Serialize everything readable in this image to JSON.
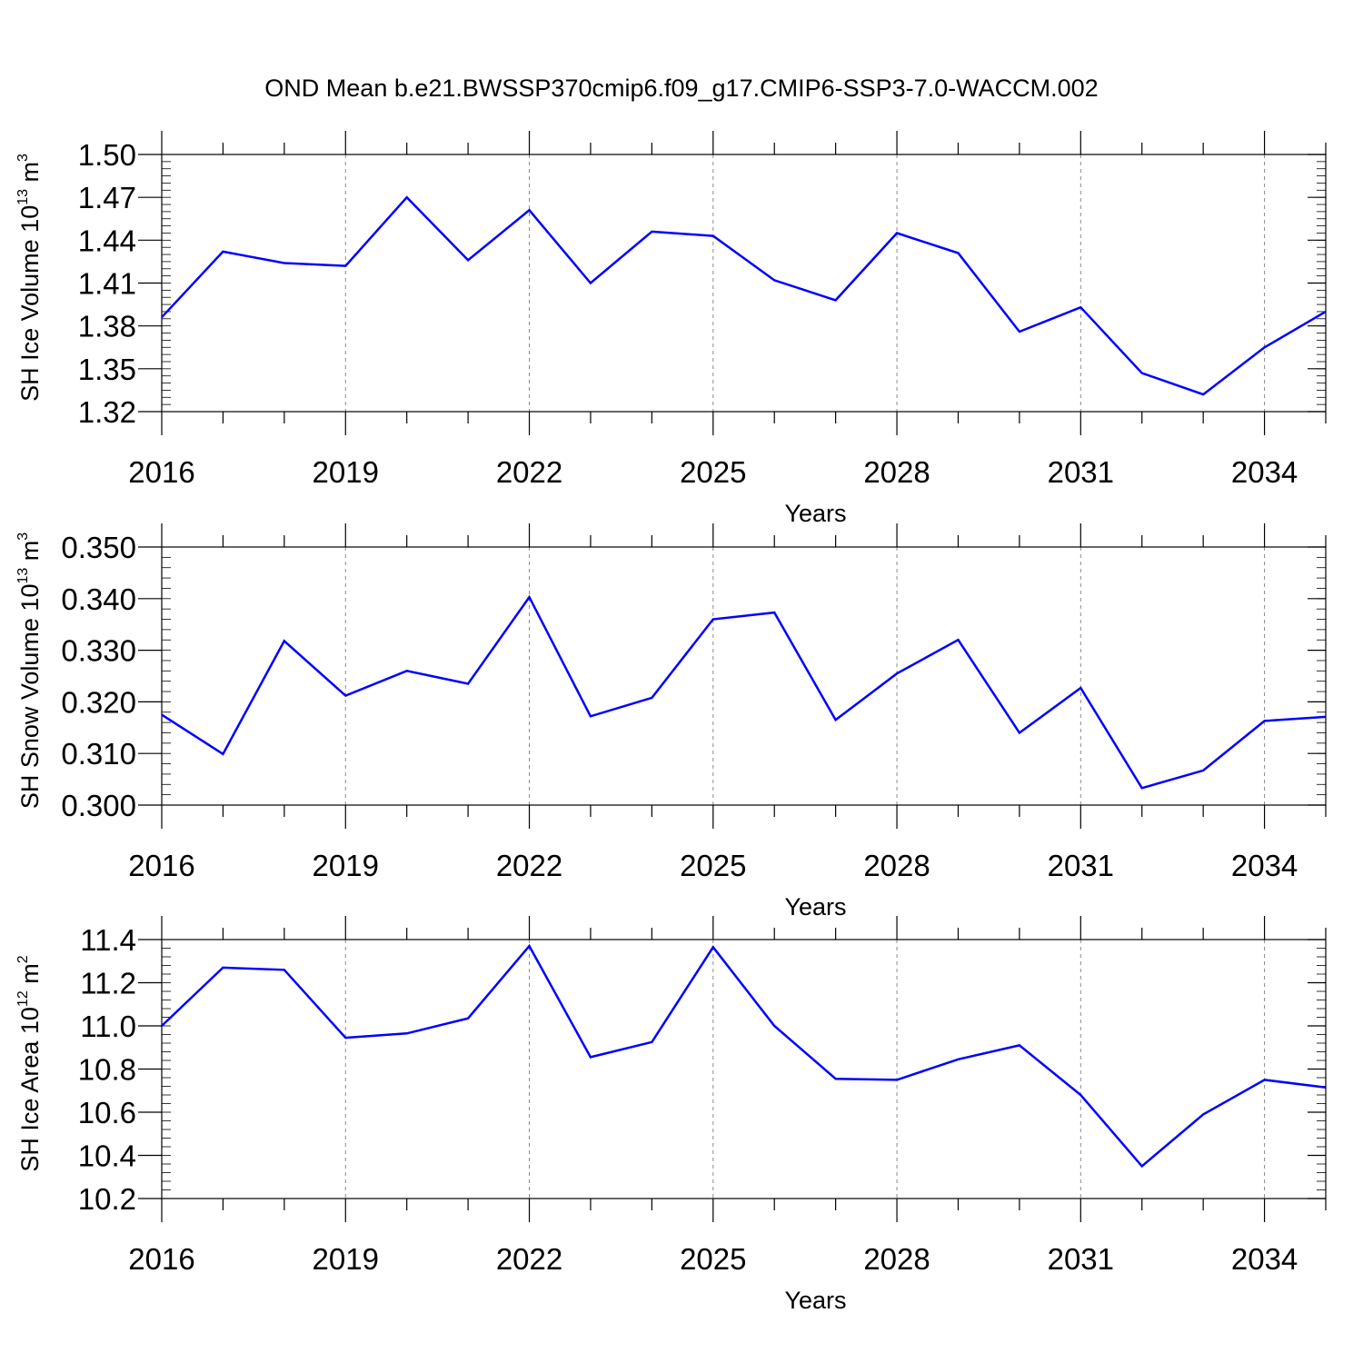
{
  "figure": {
    "title": "OND Mean b.e21.BWSSP370cmip6.f09_g17.CMIP6-SSP3-7.0-WACCM.002",
    "line_color": "#0000ff"
  },
  "chart_data": [
    {
      "type": "line",
      "xlabel": "Years",
      "ylabel": {
        "main": "SH Ice Volume 10",
        "exp": "13",
        "unit": " m",
        "unit_exp": "3"
      },
      "xlim": [
        2016,
        2035
      ],
      "ylim": [
        1.32,
        1.5
      ],
      "x_ticks": [
        2016,
        2019,
        2022,
        2025,
        2028,
        2031,
        2034
      ],
      "x_tick_labels": [
        "2016",
        "2019",
        "2022",
        "2025",
        "2028",
        "2031",
        "2034"
      ],
      "y_ticks": [
        1.32,
        1.35,
        1.38,
        1.41,
        1.44,
        1.47,
        1.5
      ],
      "y_tick_labels": [
        "1.32",
        "1.35",
        "1.38",
        "1.41",
        "1.44",
        "1.47",
        "1.50"
      ],
      "y_minor_step": 0.005,
      "grid": "vertical dashed at major x ticks",
      "x": [
        2016,
        2017,
        2018,
        2019,
        2020,
        2021,
        2022,
        2023,
        2024,
        2025,
        2026,
        2027,
        2028,
        2029,
        2030,
        2031,
        2032,
        2033,
        2034,
        2035
      ],
      "values": [
        1.386,
        1.432,
        1.424,
        1.422,
        1.47,
        1.426,
        1.461,
        1.41,
        1.446,
        1.443,
        1.412,
        1.398,
        1.445,
        1.431,
        1.376,
        1.393,
        1.347,
        1.332,
        1.365,
        1.39
      ]
    },
    {
      "type": "line",
      "xlabel": "Years",
      "ylabel": {
        "main": "SH Snow Volume 10",
        "exp": "13",
        "unit": " m",
        "unit_exp": "3"
      },
      "xlim": [
        2016,
        2035
      ],
      "ylim": [
        0.3,
        0.35
      ],
      "x_ticks": [
        2016,
        2019,
        2022,
        2025,
        2028,
        2031,
        2034
      ],
      "x_tick_labels": [
        "2016",
        "2019",
        "2022",
        "2025",
        "2028",
        "2031",
        "2034"
      ],
      "y_ticks": [
        0.3,
        0.31,
        0.32,
        0.33,
        0.34,
        0.35
      ],
      "y_tick_labels": [
        "0.300",
        "0.310",
        "0.320",
        "0.330",
        "0.340",
        "0.350"
      ],
      "y_minor_step": 0.002,
      "grid": "vertical dashed at major x ticks",
      "x": [
        2016,
        2017,
        2018,
        2019,
        2020,
        2021,
        2022,
        2023,
        2024,
        2025,
        2026,
        2027,
        2028,
        2029,
        2030,
        2031,
        2032,
        2033,
        2034,
        2035
      ],
      "values": [
        0.3175,
        0.3099,
        0.3318,
        0.3212,
        0.326,
        0.3235,
        0.3403,
        0.3172,
        0.3208,
        0.336,
        0.3373,
        0.3165,
        0.3255,
        0.332,
        0.314,
        0.3227,
        0.3033,
        0.3067,
        0.3163,
        0.3171
      ]
    },
    {
      "type": "line",
      "xlabel": "Years",
      "ylabel": {
        "main": "SH Ice Area 10",
        "exp": "12",
        "unit": " m",
        "unit_exp": "2"
      },
      "xlim": [
        2016,
        2035
      ],
      "ylim": [
        10.2,
        11.4
      ],
      "x_ticks": [
        2016,
        2019,
        2022,
        2025,
        2028,
        2031,
        2034
      ],
      "x_tick_labels": [
        "2016",
        "2019",
        "2022",
        "2025",
        "2028",
        "2031",
        "2034"
      ],
      "y_ticks": [
        10.2,
        10.4,
        10.6,
        10.8,
        11.0,
        11.2,
        11.4
      ],
      "y_tick_labels": [
        "10.2",
        "10.4",
        "10.6",
        "10.8",
        "11.0",
        "11.2",
        "11.4"
      ],
      "y_minor_step": 0.04,
      "grid": "vertical dashed at major x ticks",
      "x": [
        2016,
        2017,
        2018,
        2019,
        2020,
        2021,
        2022,
        2023,
        2024,
        2025,
        2026,
        2027,
        2028,
        2029,
        2030,
        2031,
        2032,
        2033,
        2034,
        2035
      ],
      "values": [
        11.0,
        11.27,
        11.26,
        10.945,
        10.965,
        11.035,
        11.37,
        10.855,
        10.925,
        11.365,
        11.0,
        10.755,
        10.75,
        10.845,
        10.91,
        10.68,
        10.35,
        10.59,
        10.75,
        10.715
      ]
    }
  ]
}
